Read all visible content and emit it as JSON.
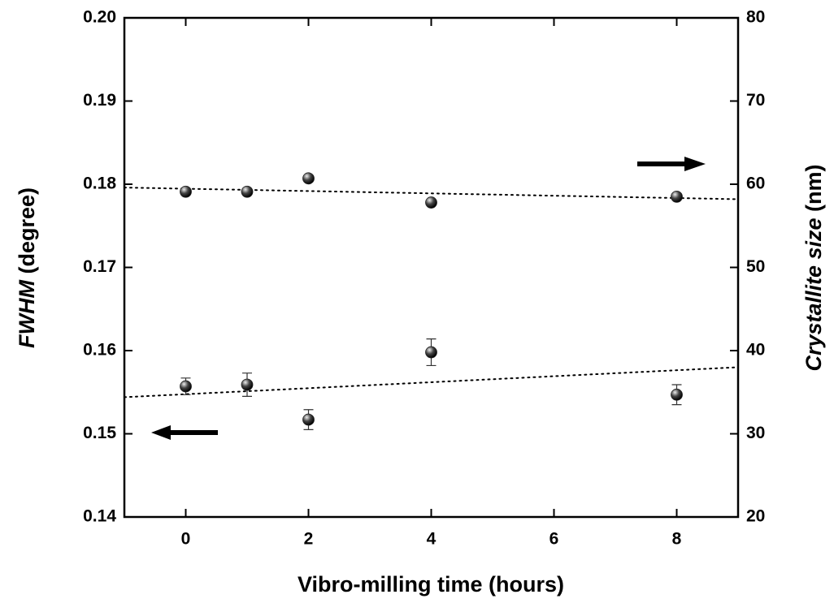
{
  "chart_data": {
    "type": "scatter",
    "x_label": "Vibro-milling time (hours)",
    "y_label_italic": "FWHM",
    "y_label": "(degree)",
    "y2_label_italic": "Crystallite size",
    "y2_label": "(nm)",
    "xlim": [
      -1,
      9
    ],
    "xticks": [
      0,
      2,
      4,
      6,
      8
    ],
    "ylim": [
      0.14,
      0.2
    ],
    "yticks": [
      0.14,
      0.15,
      0.16,
      0.17,
      0.18,
      0.19,
      {
        "value": 0.2,
        "label": "0.20"
      }
    ],
    "y2lim": [
      20,
      80
    ],
    "y2ticks": [
      20,
      30,
      40,
      50,
      60,
      70,
      80
    ],
    "series": [
      {
        "x": [
          0,
          1,
          2,
          4,
          8
        ],
        "values": [
          0.1557,
          0.1559,
          0.1517,
          0.1598,
          0.1547
        ],
        "errors": [
          0.001,
          0.0014,
          0.0012,
          0.0016,
          0.0012
        ],
        "color": "#222222"
      },
      {
        "x": [
          0,
          1,
          2,
          4,
          8
        ],
        "values": [
          59.1,
          59.1,
          60.7,
          57.8,
          58.5
        ],
        "axis": "y2",
        "color": "#222222"
      }
    ],
    "trends": [
      {
        "x": [
          -1,
          9
        ],
        "values": [
          0.1544,
          0.158
        ]
      },
      {
        "x": [
          -1,
          9
        ],
        "values": [
          59.6,
          58.2
        ],
        "axis": "y2"
      }
    ]
  }
}
